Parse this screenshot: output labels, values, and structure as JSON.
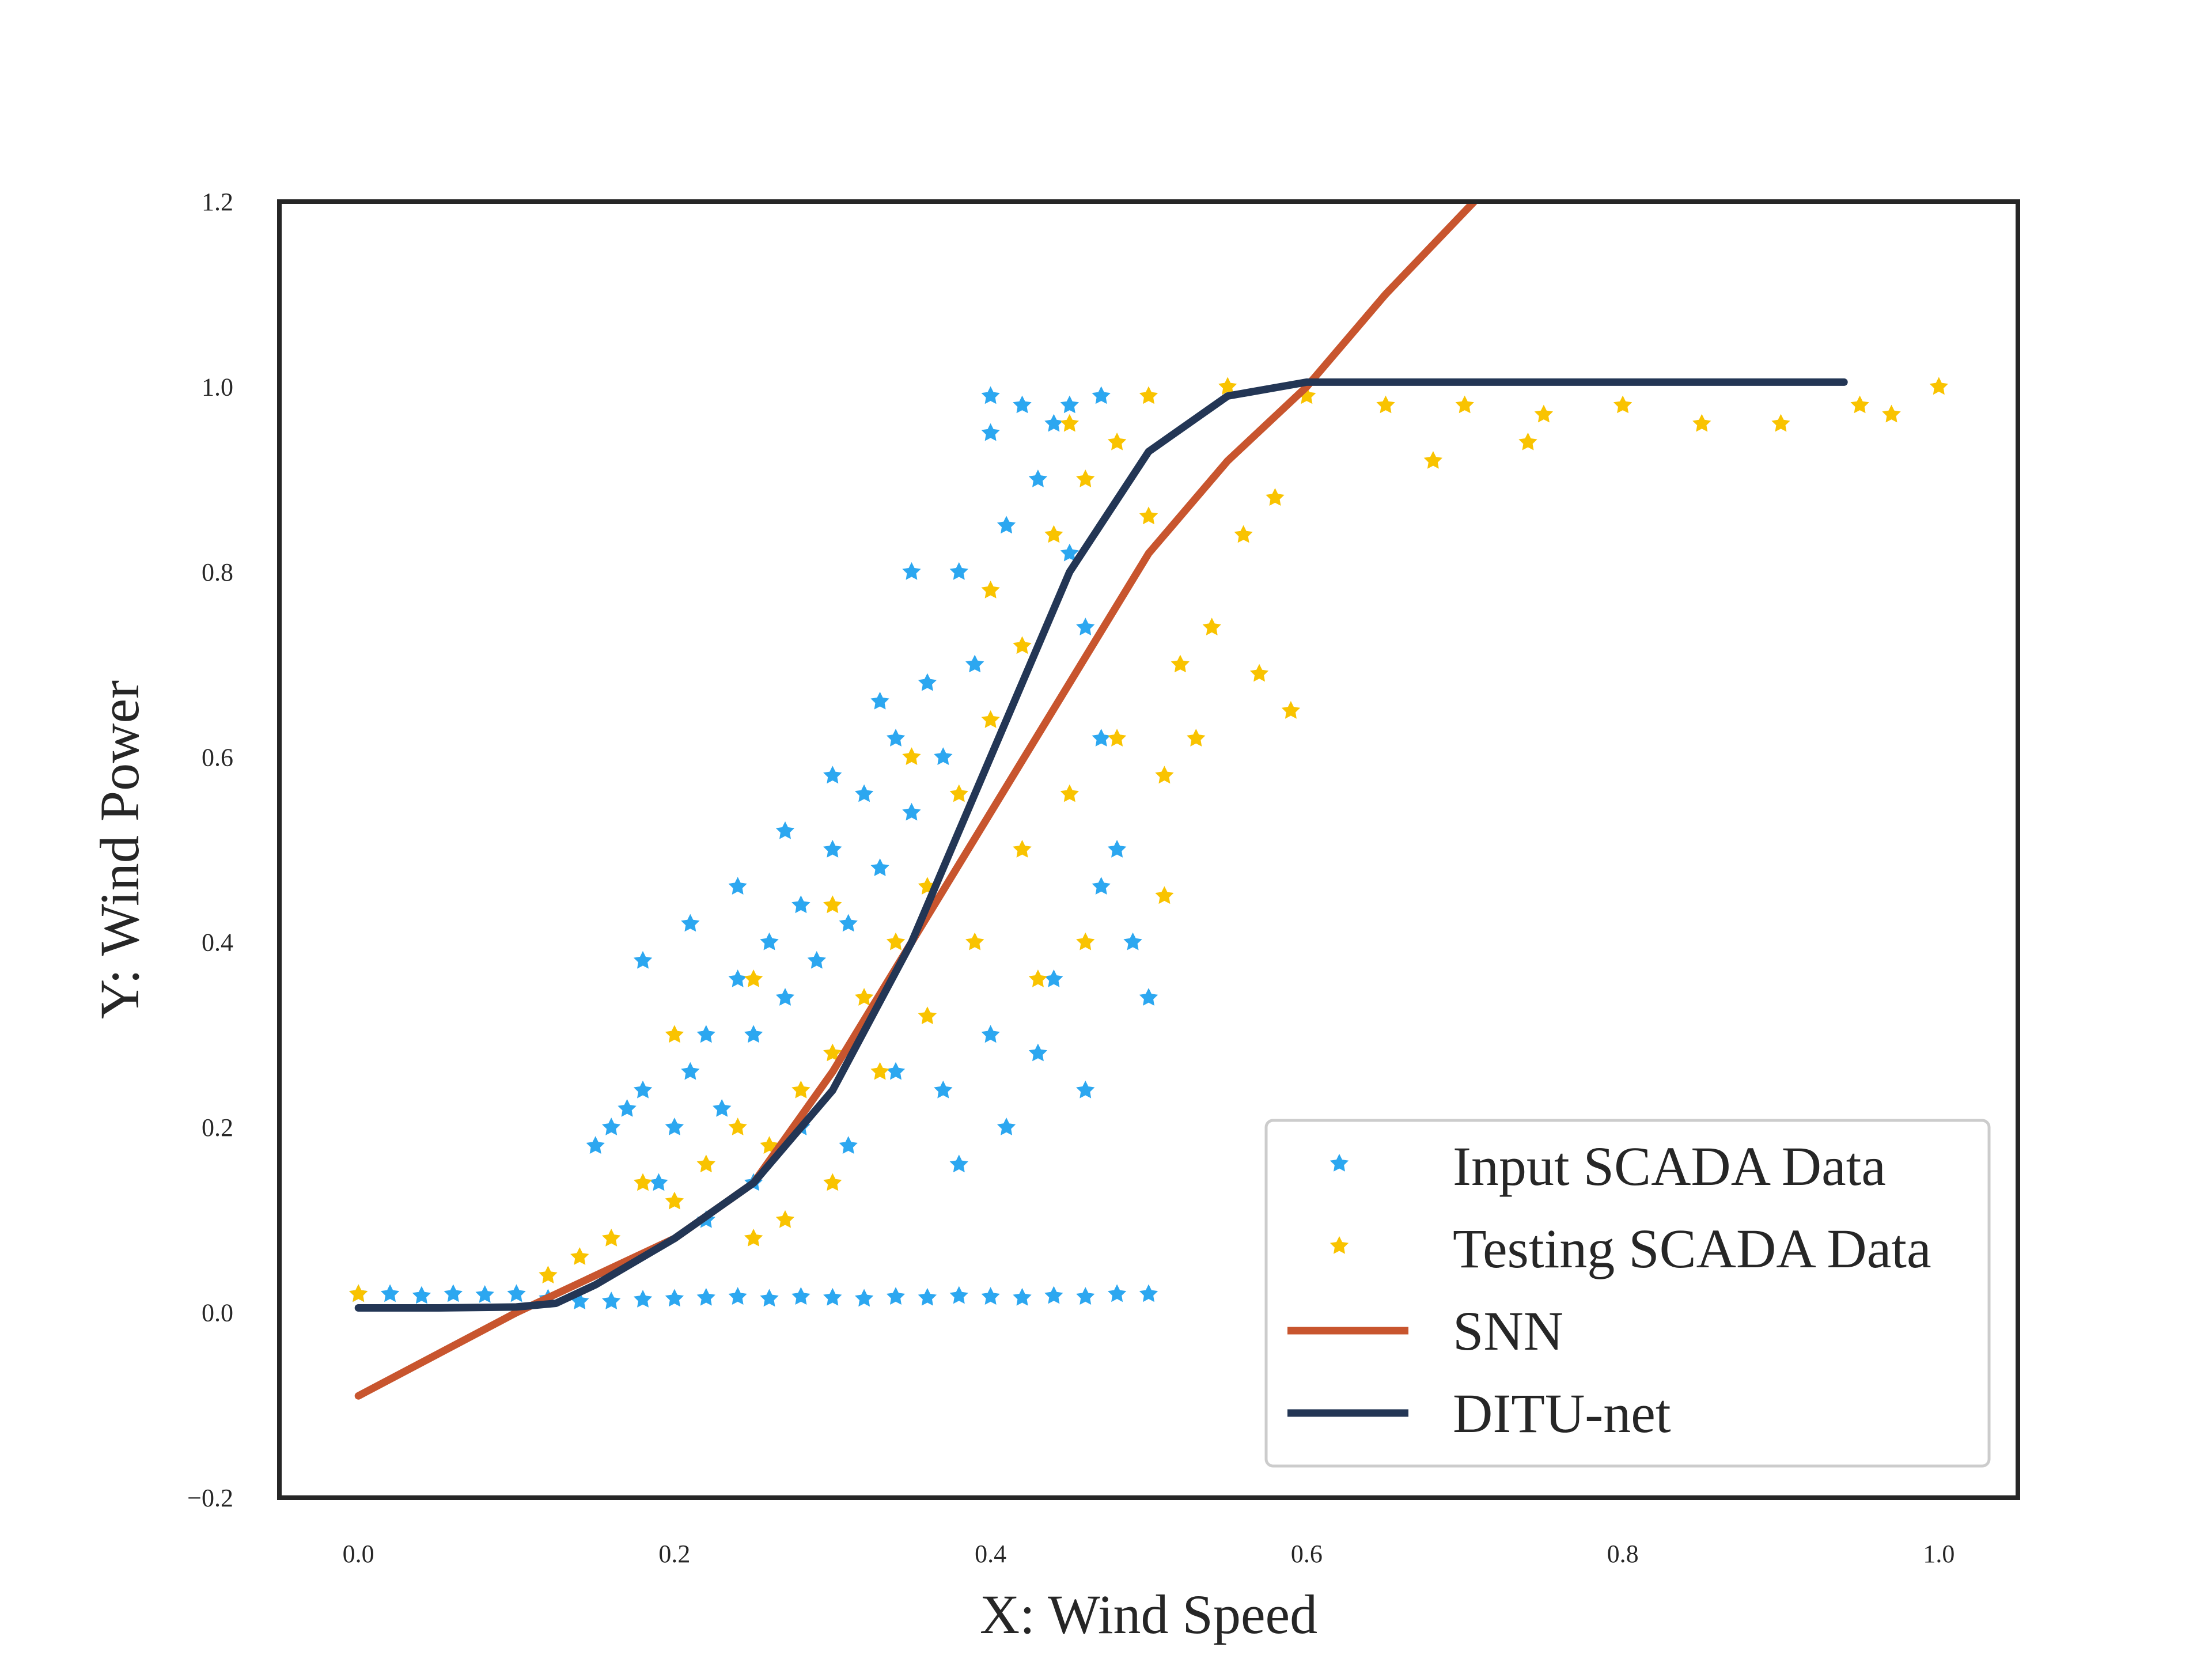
{
  "chart_data": {
    "type": "scatter",
    "title": "",
    "xlabel": "X: Wind Speed",
    "ylabel": "Y: Wind Power",
    "xlim": [
      -0.05,
      1.05
    ],
    "ylim": [
      -0.2,
      1.2
    ],
    "xticks": [
      "0.0",
      "0.2",
      "0.4",
      "0.6",
      "0.8",
      "1.0"
    ],
    "yticks": [
      "−0.2",
      "0.0",
      "0.2",
      "0.4",
      "0.6",
      "0.8",
      "1.0",
      "1.2"
    ],
    "grid": false,
    "legend_position": "lower-right",
    "series": [
      {
        "name": "Input SCADA Data",
        "kind": "scatter",
        "color": "#2ca7f0",
        "marker": "star",
        "points": [
          [
            0.0,
            0.02
          ],
          [
            0.02,
            0.02
          ],
          [
            0.04,
            0.018
          ],
          [
            0.06,
            0.02
          ],
          [
            0.08,
            0.019
          ],
          [
            0.1,
            0.02
          ],
          [
            0.12,
            0.015
          ],
          [
            0.14,
            0.012
          ],
          [
            0.16,
            0.012
          ],
          [
            0.18,
            0.014
          ],
          [
            0.2,
            0.015
          ],
          [
            0.22,
            0.016
          ],
          [
            0.24,
            0.017
          ],
          [
            0.26,
            0.015
          ],
          [
            0.28,
            0.017
          ],
          [
            0.3,
            0.016
          ],
          [
            0.32,
            0.015
          ],
          [
            0.34,
            0.017
          ],
          [
            0.36,
            0.016
          ],
          [
            0.38,
            0.018
          ],
          [
            0.4,
            0.017
          ],
          [
            0.42,
            0.016
          ],
          [
            0.44,
            0.018
          ],
          [
            0.46,
            0.017
          ],
          [
            0.48,
            0.02
          ],
          [
            0.5,
            0.02
          ],
          [
            0.15,
            0.18
          ],
          [
            0.16,
            0.2
          ],
          [
            0.17,
            0.22
          ],
          [
            0.18,
            0.24
          ],
          [
            0.19,
            0.14
          ],
          [
            0.2,
            0.2
          ],
          [
            0.21,
            0.26
          ],
          [
            0.22,
            0.3
          ],
          [
            0.23,
            0.22
          ],
          [
            0.24,
            0.36
          ],
          [
            0.25,
            0.3
          ],
          [
            0.26,
            0.4
          ],
          [
            0.27,
            0.34
          ],
          [
            0.28,
            0.44
          ],
          [
            0.29,
            0.38
          ],
          [
            0.3,
            0.5
          ],
          [
            0.31,
            0.42
          ],
          [
            0.32,
            0.56
          ],
          [
            0.33,
            0.48
          ],
          [
            0.34,
            0.62
          ],
          [
            0.35,
            0.54
          ],
          [
            0.36,
            0.68
          ],
          [
            0.37,
            0.6
          ],
          [
            0.38,
            0.8
          ],
          [
            0.39,
            0.7
          ],
          [
            0.4,
            0.95
          ],
          [
            0.41,
            0.85
          ],
          [
            0.42,
            0.98
          ],
          [
            0.43,
            0.9
          ],
          [
            0.44,
            0.96
          ],
          [
            0.45,
            0.82
          ],
          [
            0.46,
            0.74
          ],
          [
            0.47,
            0.62
          ],
          [
            0.48,
            0.5
          ],
          [
            0.49,
            0.4
          ],
          [
            0.5,
            0.34
          ],
          [
            0.22,
            0.1
          ],
          [
            0.25,
            0.14
          ],
          [
            0.28,
            0.2
          ],
          [
            0.31,
            0.18
          ],
          [
            0.34,
            0.26
          ],
          [
            0.37,
            0.24
          ],
          [
            0.4,
            0.3
          ],
          [
            0.43,
            0.28
          ],
          [
            0.46,
            0.24
          ],
          [
            0.38,
            0.16
          ],
          [
            0.41,
            0.2
          ],
          [
            0.44,
            0.36
          ],
          [
            0.47,
            0.46
          ],
          [
            0.35,
            0.8
          ],
          [
            0.33,
            0.66
          ],
          [
            0.3,
            0.58
          ],
          [
            0.27,
            0.52
          ],
          [
            0.24,
            0.46
          ],
          [
            0.21,
            0.42
          ],
          [
            0.18,
            0.38
          ],
          [
            0.45,
            0.98
          ],
          [
            0.47,
            0.99
          ],
          [
            0.4,
            0.99
          ]
        ]
      },
      {
        "name": "Testing SCADA Data",
        "kind": "scatter",
        "color": "#f9c300",
        "marker": "star",
        "points": [
          [
            0.0,
            0.02
          ],
          [
            0.12,
            0.04
          ],
          [
            0.14,
            0.06
          ],
          [
            0.16,
            0.08
          ],
          [
            0.18,
            0.14
          ],
          [
            0.2,
            0.12
          ],
          [
            0.22,
            0.16
          ],
          [
            0.24,
            0.2
          ],
          [
            0.26,
            0.18
          ],
          [
            0.28,
            0.24
          ],
          [
            0.3,
            0.28
          ],
          [
            0.32,
            0.34
          ],
          [
            0.34,
            0.4
          ],
          [
            0.36,
            0.46
          ],
          [
            0.38,
            0.56
          ],
          [
            0.4,
            0.64
          ],
          [
            0.42,
            0.72
          ],
          [
            0.44,
            0.84
          ],
          [
            0.46,
            0.9
          ],
          [
            0.48,
            0.94
          ],
          [
            0.5,
            0.86
          ],
          [
            0.52,
            0.7
          ],
          [
            0.54,
            0.74
          ],
          [
            0.56,
            0.84
          ],
          [
            0.58,
            0.88
          ],
          [
            0.2,
            0.3
          ],
          [
            0.25,
            0.36
          ],
          [
            0.3,
            0.44
          ],
          [
            0.35,
            0.6
          ],
          [
            0.4,
            0.78
          ],
          [
            0.45,
            0.96
          ],
          [
            0.5,
            0.99
          ],
          [
            0.55,
            1.0
          ],
          [
            0.6,
            0.99
          ],
          [
            0.65,
            0.98
          ],
          [
            0.7,
            0.98
          ],
          [
            0.75,
            0.97
          ],
          [
            0.8,
            0.98
          ],
          [
            0.85,
            0.96
          ],
          [
            0.9,
            0.96
          ],
          [
            0.95,
            0.98
          ],
          [
            0.97,
            0.97
          ],
          [
            1.0,
            1.0
          ],
          [
            0.33,
            0.26
          ],
          [
            0.36,
            0.32
          ],
          [
            0.39,
            0.4
          ],
          [
            0.42,
            0.5
          ],
          [
            0.45,
            0.56
          ],
          [
            0.48,
            0.62
          ],
          [
            0.51,
            0.58
          ],
          [
            0.53,
            0.62
          ],
          [
            0.57,
            0.69
          ],
          [
            0.59,
            0.65
          ],
          [
            0.51,
            0.45
          ],
          [
            0.46,
            0.4
          ],
          [
            0.43,
            0.36
          ],
          [
            0.27,
            0.1
          ],
          [
            0.3,
            0.14
          ],
          [
            0.25,
            0.08
          ],
          [
            0.68,
            0.92
          ],
          [
            0.74,
            0.94
          ]
        ]
      },
      {
        "name": "SNN",
        "kind": "line",
        "color": "#c8552e",
        "points": [
          [
            0.0,
            -0.09
          ],
          [
            0.1,
            0.0
          ],
          [
            0.2,
            0.08
          ],
          [
            0.25,
            0.14
          ],
          [
            0.3,
            0.26
          ],
          [
            0.35,
            0.4
          ],
          [
            0.4,
            0.54
          ],
          [
            0.45,
            0.68
          ],
          [
            0.5,
            0.82
          ],
          [
            0.55,
            0.92
          ],
          [
            0.6,
            1.0
          ],
          [
            0.65,
            1.1
          ],
          [
            0.706,
            1.2
          ]
        ]
      },
      {
        "name": "DITU-net",
        "kind": "line",
        "color": "#233655",
        "points": [
          [
            0.0,
            0.005
          ],
          [
            0.05,
            0.005
          ],
          [
            0.1,
            0.006
          ],
          [
            0.125,
            0.01
          ],
          [
            0.15,
            0.03
          ],
          [
            0.2,
            0.08
          ],
          [
            0.25,
            0.14
          ],
          [
            0.3,
            0.24
          ],
          [
            0.35,
            0.4
          ],
          [
            0.4,
            0.6
          ],
          [
            0.45,
            0.8
          ],
          [
            0.5,
            0.93
          ],
          [
            0.55,
            0.99
          ],
          [
            0.6,
            1.005
          ],
          [
            0.7,
            1.005
          ],
          [
            0.8,
            1.005
          ],
          [
            0.94,
            1.005
          ]
        ]
      }
    ]
  }
}
